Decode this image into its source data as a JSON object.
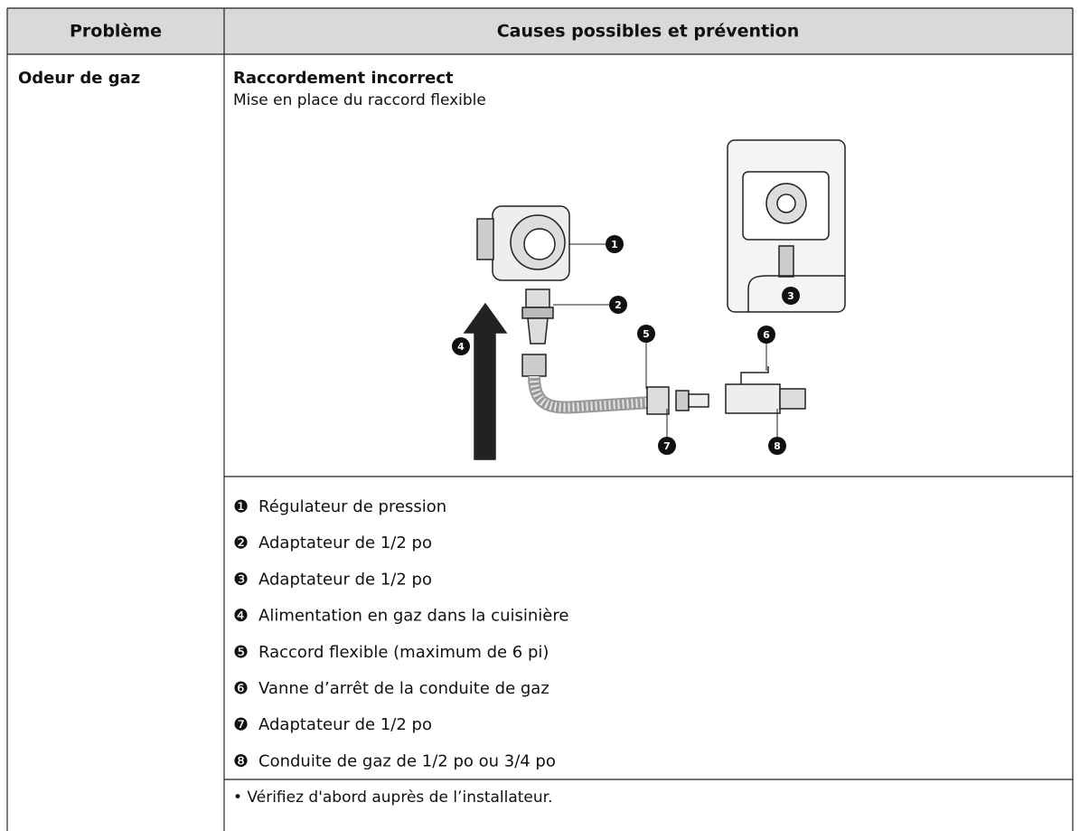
{
  "table": {
    "headers": [
      "Problème",
      "Causes possibles et prévention"
    ],
    "rows": [
      {
        "problem": "Odeur de gaz",
        "heading": "Raccordement incorrect",
        "subheading": "Mise en place du raccord flexible",
        "diagram": {
          "callouts": [
            "1",
            "2",
            "3",
            "4",
            "5",
            "6",
            "7",
            "8"
          ]
        },
        "items": [
          {
            "marker": "❶",
            "text": "Régulateur de pression"
          },
          {
            "marker": "❷",
            "text": "Adaptateur de 1/2 po"
          },
          {
            "marker": "❸",
            "text": "Adaptateur de 1/2 po"
          },
          {
            "marker": "❹",
            "text": "Alimentation en gaz dans la cuisinière"
          },
          {
            "marker": "❺",
            "text": "Raccord flexible (maximum de 6 pi)"
          },
          {
            "marker": "❻",
            "text": "Vanne d’arrêt de la conduite de gaz"
          },
          {
            "marker": "❼",
            "text": "Adaptateur de 1/2 po"
          },
          {
            "marker": "❽",
            "text": "Conduite de gaz de 1/2 po ou 3/4 po"
          }
        ],
        "note": "• Vérifiez d'abord auprès de l’installateur."
      }
    ]
  }
}
